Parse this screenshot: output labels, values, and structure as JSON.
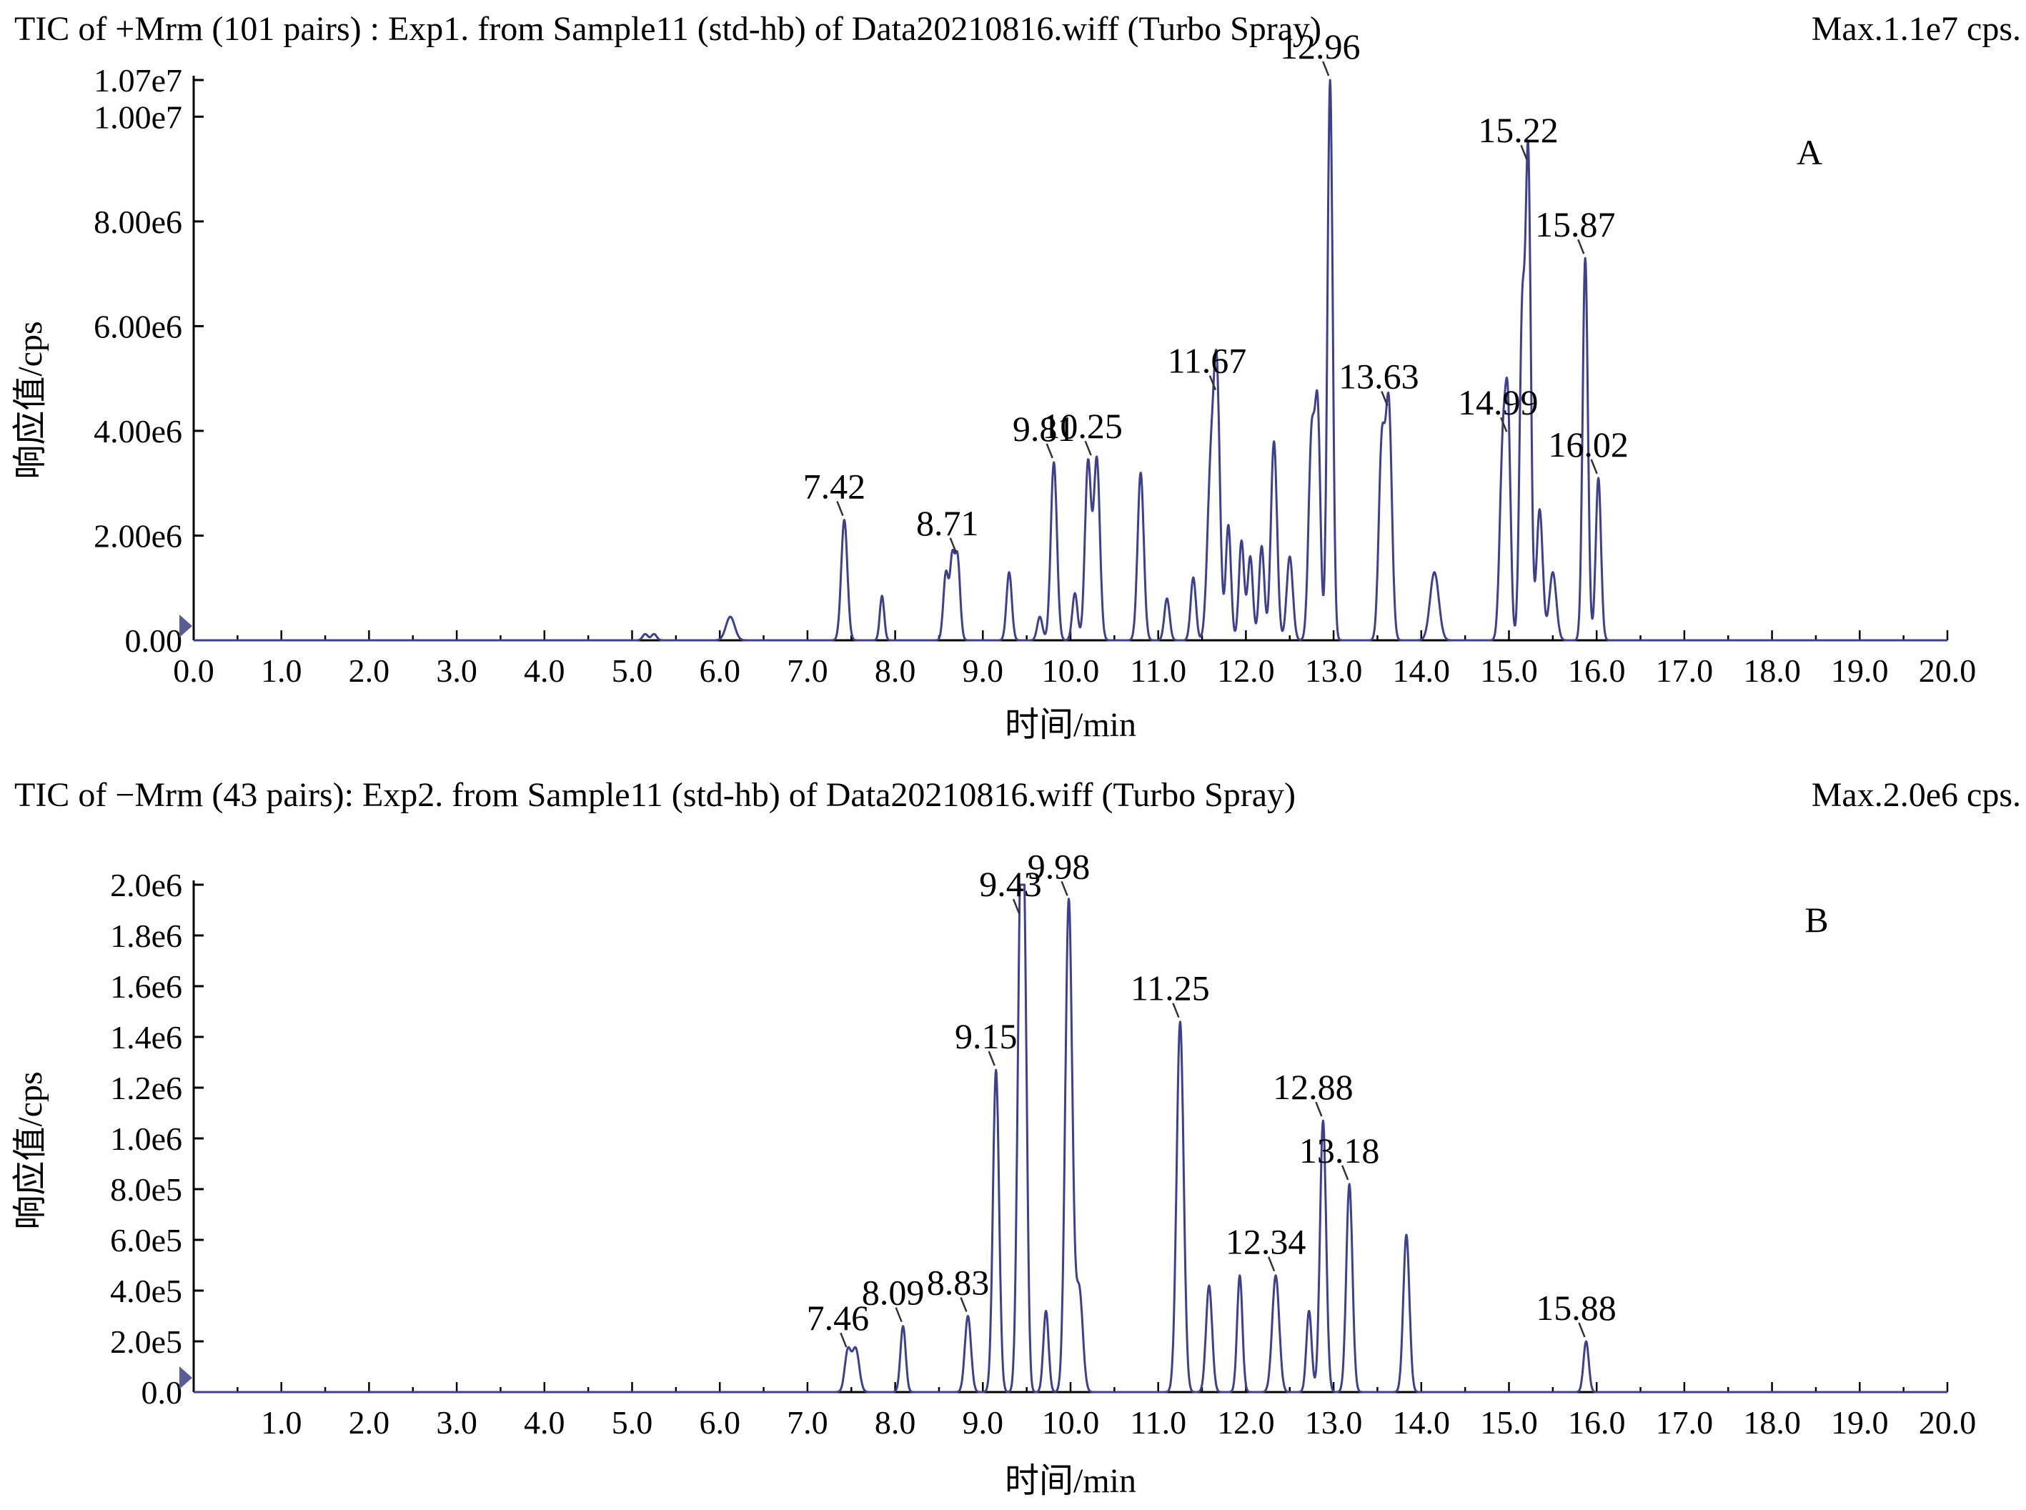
{
  "chart_data": [
    {
      "type": "line",
      "panel_label": "A",
      "title": "TIC of +Mrm (101 pairs) : Exp1. from Sample11 (std-hb) of Data20210816.wiff (Turbo Spray)",
      "max_label": "Max.1.1e7 cps.",
      "xlabel": "时间/min",
      "ylabel": "响应值/cps",
      "xlim": [
        0,
        20
      ],
      "ylim": [
        0,
        10700000
      ],
      "x_ticks": [
        "0.0",
        "1.0",
        "2.0",
        "3.0",
        "4.0",
        "5.0",
        "6.0",
        "7.0",
        "8.0",
        "9.0",
        "10.0",
        "11.0",
        "12.0",
        "13.0",
        "14.0",
        "15.0",
        "16.0",
        "17.0",
        "18.0",
        "19.0",
        "20.0"
      ],
      "y_ticks": [
        {
          "value": 0,
          "label": "0.00"
        },
        {
          "value": 2000000,
          "label": "2.00e6"
        },
        {
          "value": 4000000,
          "label": "4.00e6"
        },
        {
          "value": 6000000,
          "label": "6.00e6"
        },
        {
          "value": 8000000,
          "label": "8.00e6"
        },
        {
          "value": 10000000,
          "label": "1.00e7"
        },
        {
          "value": 10700000,
          "label": "1.07e7"
        }
      ],
      "peak_labels": [
        {
          "x": 7.42,
          "y": 2300000,
          "text": "7.42"
        },
        {
          "x": 8.71,
          "y": 1600000,
          "text": "8.71"
        },
        {
          "x": 9.81,
          "y": 3400000,
          "text": "9.81"
        },
        {
          "x": 10.25,
          "y": 3450000,
          "text": "10.25"
        },
        {
          "x": 11.67,
          "y": 4700000,
          "text": "11.67"
        },
        {
          "x": 12.96,
          "y": 10700000,
          "text": "12.96"
        },
        {
          "x": 13.63,
          "y": 4400000,
          "text": "13.63"
        },
        {
          "x": 14.99,
          "y": 3900000,
          "text": "14.99"
        },
        {
          "x": 15.22,
          "y": 9100000,
          "text": "15.22"
        },
        {
          "x": 15.87,
          "y": 7300000,
          "text": "15.87"
        },
        {
          "x": 16.02,
          "y": 3100000,
          "text": "16.02"
        }
      ],
      "peaks": [
        [
          5.15,
          120000,
          0.03
        ],
        [
          5.25,
          120000,
          0.03
        ],
        [
          6.12,
          450000,
          0.05
        ],
        [
          7.42,
          2300000,
          0.035
        ],
        [
          7.85,
          850000,
          0.025
        ],
        [
          8.58,
          1300000,
          0.03
        ],
        [
          8.65,
          1400000,
          0.025
        ],
        [
          8.71,
          1600000,
          0.03
        ],
        [
          9.3,
          1300000,
          0.03
        ],
        [
          9.65,
          450000,
          0.03
        ],
        [
          9.81,
          3400000,
          0.035
        ],
        [
          10.05,
          900000,
          0.03
        ],
        [
          10.2,
          3400000,
          0.035
        ],
        [
          10.3,
          3450000,
          0.035
        ],
        [
          10.8,
          3200000,
          0.035
        ],
        [
          11.1,
          800000,
          0.03
        ],
        [
          11.4,
          1200000,
          0.03
        ],
        [
          11.6,
          3200000,
          0.04
        ],
        [
          11.67,
          4700000,
          0.035
        ],
        [
          11.8,
          2200000,
          0.03
        ],
        [
          11.95,
          1900000,
          0.03
        ],
        [
          12.05,
          1600000,
          0.03
        ],
        [
          12.18,
          1800000,
          0.03
        ],
        [
          12.32,
          3800000,
          0.035
        ],
        [
          12.5,
          1600000,
          0.035
        ],
        [
          12.75,
          3900000,
          0.035
        ],
        [
          12.82,
          4100000,
          0.03
        ],
        [
          12.96,
          10700000,
          0.03
        ],
        [
          13.55,
          3700000,
          0.035
        ],
        [
          13.63,
          4400000,
          0.035
        ],
        [
          14.15,
          1300000,
          0.05
        ],
        [
          14.93,
          3600000,
          0.035
        ],
        [
          14.99,
          3900000,
          0.03
        ],
        [
          15.15,
          6000000,
          0.03
        ],
        [
          15.22,
          9100000,
          0.03
        ],
        [
          15.35,
          2500000,
          0.035
        ],
        [
          15.5,
          1300000,
          0.04
        ],
        [
          15.87,
          7300000,
          0.03
        ],
        [
          16.02,
          3100000,
          0.03
        ]
      ]
    },
    {
      "type": "line",
      "panel_label": "B",
      "title": "TIC of −Mrm (43 pairs): Exp2. from Sample11 (std-hb) of Data20210816.wiff (Turbo Spray)",
      "max_label": "Max.2.0e6 cps.",
      "xlabel": "时间/min",
      "ylabel": "响应值/cps",
      "xlim": [
        0,
        20
      ],
      "ylim": [
        0,
        2000000
      ],
      "x_ticks": [
        "1.0",
        "2.0",
        "3.0",
        "4.0",
        "5.0",
        "6.0",
        "7.0",
        "8.0",
        "9.0",
        "10.0",
        "11.0",
        "12.0",
        "13.0",
        "14.0",
        "15.0",
        "16.0",
        "17.0",
        "18.0",
        "19.0",
        "20.0"
      ],
      "y_ticks": [
        {
          "value": 0,
          "label": "0.0"
        },
        {
          "value": 200000,
          "label": "2.0e5"
        },
        {
          "value": 400000,
          "label": "4.0e5"
        },
        {
          "value": 600000,
          "label": "6.0e5"
        },
        {
          "value": 800000,
          "label": "8.0e5"
        },
        {
          "value": 1000000,
          "label": "1.0e6"
        },
        {
          "value": 1200000,
          "label": "1.2e6"
        },
        {
          "value": 1400000,
          "label": "1.4e6"
        },
        {
          "value": 1600000,
          "label": "1.6e6"
        },
        {
          "value": 1800000,
          "label": "1.8e6"
        },
        {
          "value": 2000000,
          "label": "2.0e6"
        }
      ],
      "peak_labels": [
        {
          "x": 7.46,
          "y": 160000,
          "text": "7.46"
        },
        {
          "x": 8.09,
          "y": 260000,
          "text": "8.09"
        },
        {
          "x": 8.83,
          "y": 300000,
          "text": "8.83"
        },
        {
          "x": 9.15,
          "y": 1270000,
          "text": "9.15"
        },
        {
          "x": 9.43,
          "y": 1870000,
          "text": "9.43"
        },
        {
          "x": 9.98,
          "y": 1940000,
          "text": "9.98"
        },
        {
          "x": 11.25,
          "y": 1460000,
          "text": "11.25"
        },
        {
          "x": 12.34,
          "y": 460000,
          "text": "12.34"
        },
        {
          "x": 12.88,
          "y": 1070000,
          "text": "12.88"
        },
        {
          "x": 13.18,
          "y": 820000,
          "text": "13.18"
        },
        {
          "x": 15.88,
          "y": 200000,
          "text": "15.88"
        }
      ],
      "peaks": [
        [
          7.46,
          160000,
          0.035
        ],
        [
          7.55,
          170000,
          0.04
        ],
        [
          8.09,
          260000,
          0.03
        ],
        [
          8.83,
          300000,
          0.035
        ],
        [
          9.15,
          1270000,
          0.035
        ],
        [
          9.43,
          1870000,
          0.035
        ],
        [
          9.48,
          1200000,
          0.03
        ],
        [
          9.72,
          320000,
          0.03
        ],
        [
          9.98,
          1940000,
          0.04
        ],
        [
          10.1,
          400000,
          0.04
        ],
        [
          11.25,
          1460000,
          0.04
        ],
        [
          11.58,
          420000,
          0.035
        ],
        [
          11.93,
          460000,
          0.03
        ],
        [
          12.34,
          460000,
          0.04
        ],
        [
          12.72,
          320000,
          0.03
        ],
        [
          12.88,
          1070000,
          0.035
        ],
        [
          13.18,
          820000,
          0.035
        ],
        [
          13.83,
          620000,
          0.035
        ],
        [
          15.88,
          200000,
          0.03
        ]
      ]
    }
  ]
}
